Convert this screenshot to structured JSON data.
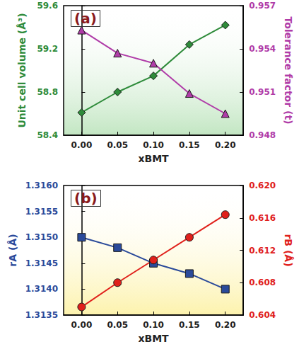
{
  "chart_data": [
    {
      "type": "line",
      "title": "(a)",
      "xlabel": "xBMT",
      "x": [
        0,
        0.05,
        0.1,
        0.15,
        0.2
      ],
      "xlim": [
        -0.025,
        0.225
      ],
      "xticks": [
        {
          "value": 0,
          "label": "0.00"
        },
        {
          "value": 0.05,
          "label": "0.05"
        },
        {
          "value": 0.1,
          "label": "0.10"
        },
        {
          "value": 0.15,
          "label": "0.15"
        },
        {
          "value": 0.2,
          "label": "0.20"
        }
      ],
      "ylabel": "Unit cell volume (Å³)",
      "ylim": [
        58.4,
        59.6
      ],
      "yticks": [
        58.4,
        58.8,
        59.2,
        59.6
      ],
      "y2label": "Tolerance factor (t)",
      "y2lim": [
        0.948,
        0.957
      ],
      "y2ticks": [
        0.948,
        0.951,
        0.954,
        0.957
      ],
      "series": [
        {
          "color": "#2e8b3a",
          "marker": "diamond",
          "values": [
            58.61,
            58.8,
            58.95,
            59.24,
            59.42
          ]
        },
        {
          "color": "#b03ca8",
          "marker": "triangle",
          "axis": "y2",
          "values": [
            0.9553,
            0.9537,
            0.953,
            0.9509,
            0.9495
          ]
        }
      ]
    },
    {
      "type": "line",
      "title": "(b)",
      "xlabel": "xBMT",
      "x": [
        0,
        0.05,
        0.1,
        0.15,
        0.2
      ],
      "xlim": [
        -0.025,
        0.225
      ],
      "xticks": [
        {
          "value": 0,
          "label": "0.00"
        },
        {
          "value": 0.05,
          "label": "0.05"
        },
        {
          "value": 0.1,
          "label": "0.10"
        },
        {
          "value": 0.15,
          "label": "0.15"
        },
        {
          "value": 0.2,
          "label": "0.20"
        }
      ],
      "ylabel": "rA (Å)",
      "ylim": [
        1.3135,
        1.316
      ],
      "yticks": [
        1.3135,
        {
          "value": 1.314,
          "label": "1.3140"
        },
        1.3145,
        {
          "value": 1.315,
          "label": "1.3150"
        },
        1.3155,
        {
          "value": 1.316,
          "label": "1.3160"
        }
      ],
      "y2label": "rB (Å)",
      "y2lim": [
        0.604,
        0.62
      ],
      "y2ticks": [
        0.604,
        0.608,
        0.612,
        0.616,
        {
          "value": 0.62,
          "label": "0.620"
        }
      ],
      "series": [
        {
          "color": "#2a4a9a",
          "marker": "rect",
          "values": [
            1.315,
            1.3148,
            1.3145,
            1.3143,
            1.314
          ]
        },
        {
          "color": "#e0201b",
          "marker": "circle",
          "axis": "y2",
          "values": [
            0.605,
            0.608,
            0.6108,
            0.6136,
            0.6164
          ]
        }
      ]
    }
  ]
}
